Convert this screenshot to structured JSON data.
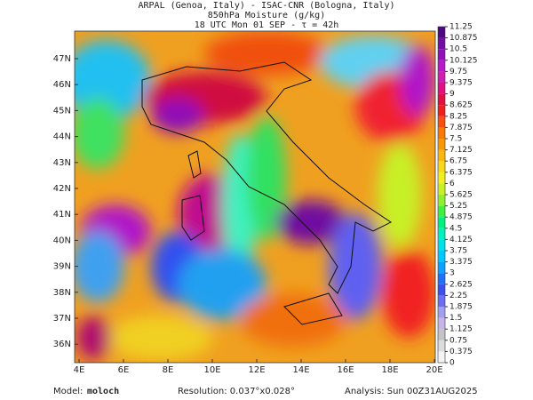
{
  "header": {
    "line1": "ARPAL (Genoa, Italy)  -  ISAC-CNR (Bologna, Italy)",
    "line2": "850hPa Moisture (g/kg)",
    "line3": "18 UTC Mon 01 SEP  -  τ = 42h"
  },
  "map": {
    "lat_labels": [
      "47N",
      "46N",
      "45N",
      "44N",
      "43N",
      "42N",
      "41N",
      "40N",
      "39N",
      "38N",
      "37N",
      "36N"
    ],
    "lon_labels": [
      "4E",
      "6E",
      "8E",
      "10E",
      "12E",
      "14E",
      "16E",
      "18E",
      "20E"
    ]
  },
  "colorbar": {
    "ticks": [
      0,
      0.375,
      0.75,
      1.125,
      1.5,
      1.875,
      2.25,
      2.625,
      3,
      3.375,
      3.75,
      4.125,
      4.5,
      4.875,
      5.25,
      5.625,
      6,
      6.375,
      6.75,
      7.125,
      7.5,
      7.875,
      8.25,
      8.625,
      9,
      9.375,
      9.75,
      10.125,
      10.5,
      10.875,
      11.25
    ],
    "colors": [
      "#f4f4f4",
      "#dcdcdc",
      "#c4c4c4",
      "#c8b4e8",
      "#a0a0f0",
      "#6e6ef0",
      "#3c50f0",
      "#2070f8",
      "#10a0ff",
      "#00c8ff",
      "#00e0e8",
      "#00f0c0",
      "#00f080",
      "#40f040",
      "#90f030",
      "#c8f028",
      "#f0f020",
      "#f8d818",
      "#f8b810",
      "#f89808",
      "#f87808",
      "#f85010",
      "#f02020",
      "#e01040",
      "#e01080",
      "#d020b0",
      "#b818c8",
      "#9010b8",
      "#7010a0",
      "#500880"
    ]
  },
  "footer": {
    "model_label": "Model:",
    "model": "moloch",
    "resolution": "Resolution: 0.037°x0.028°",
    "analysis": "Analysis: Sun 00Z31AUG2025"
  }
}
